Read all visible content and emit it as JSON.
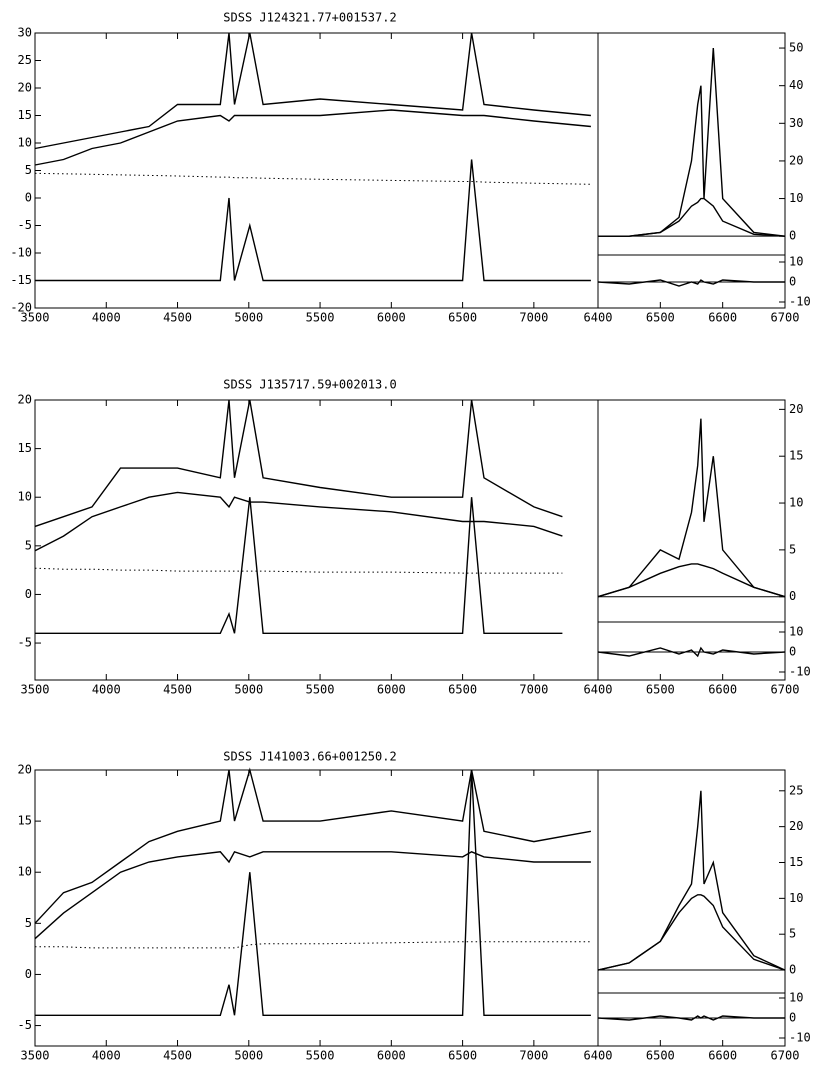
{
  "chart_data": [
    {
      "type": "line",
      "title": "SDSS J124321.77+001537.2",
      "x": [
        3500,
        3700,
        3900,
        4100,
        4300,
        4500,
        4800,
        4861,
        4900,
        5007,
        5100,
        5500,
        6000,
        6500,
        6563,
        6650,
        7000,
        7400
      ],
      "xlim": [
        3500,
        7450
      ],
      "xticks": [
        3500,
        4000,
        4500,
        5000,
        5500,
        6000,
        6500,
        7000
      ],
      "ylim": [
        -20,
        30
      ],
      "yticks": [
        -20,
        -15,
        -10,
        -5,
        0,
        5,
        10,
        15,
        20,
        25,
        30
      ],
      "series": [
        {
          "color": "#000000",
          "values": [
            9,
            10,
            11,
            12,
            13,
            17,
            17,
            30,
            17,
            30,
            17,
            18,
            17,
            16,
            30,
            17,
            16,
            15
          ]
        },
        {
          "color": "#000000",
          "values": [
            6,
            7,
            9,
            10,
            12,
            14,
            15,
            14,
            15,
            15,
            15,
            15,
            16,
            15,
            15,
            15,
            14,
            13
          ]
        },
        {
          "color": "#000000",
          "style": "dotted",
          "values": [
            4.5,
            4.4,
            4.3,
            4.2,
            4.1,
            4,
            3.8,
            3.8,
            3.7,
            3.7,
            3.6,
            3.4,
            3.2,
            3,
            3,
            2.9,
            2.7,
            2.5
          ]
        },
        {
          "color": "#000000",
          "values": [
            -15,
            -15,
            -15,
            -15,
            -15,
            -15,
            -15,
            0,
            -15,
            -5,
            -15,
            -15,
            -15,
            -15,
            7,
            -15,
            -15,
            -15
          ]
        }
      ],
      "inset": {
        "type": "line",
        "x": [
          6400,
          6450,
          6500,
          6530,
          6550,
          6560,
          6565,
          6570,
          6585,
          6600,
          6650,
          6700
        ],
        "xlim": [
          6400,
          6700
        ],
        "xticks": [
          6400,
          6500,
          6600,
          6700
        ],
        "ylim": [
          -5,
          54
        ],
        "yticks": [
          0,
          10,
          20,
          30,
          40,
          50
        ],
        "series": [
          {
            "color": "#000000",
            "values": [
              0,
              0,
              1,
              5,
              20,
              35,
              40,
              10,
              50,
              10,
              1,
              0
            ]
          },
          {
            "color": "#000000",
            "values": [
              0,
              0,
              1,
              4,
              8,
              9,
              10,
              10,
              8,
              4,
              0.5,
              0
            ]
          }
        ]
      },
      "inset_residual": {
        "type": "line",
        "x": [
          6400,
          6450,
          6500,
          6530,
          6550,
          6560,
          6565,
          6570,
          6585,
          6600,
          6650,
          6700
        ],
        "xlim": [
          6400,
          6700
        ],
        "ylim": [
          -13,
          13.5
        ],
        "yticks": [
          -10,
          0,
          10
        ],
        "series": [
          {
            "color": "#000000",
            "values": [
              0,
              -1,
              1,
              -2,
              0,
              -1,
              1,
              0,
              -1,
              1,
              0,
              0
            ]
          }
        ]
      }
    },
    {
      "type": "line",
      "title": "SDSS J135717.59+002013.0",
      "x": [
        3500,
        3700,
        3900,
        4100,
        4300,
        4500,
        4800,
        4861,
        4900,
        5007,
        5100,
        5500,
        6000,
        6500,
        6563,
        6650,
        7000,
        7200
      ],
      "xlim": [
        3500,
        7450
      ],
      "xticks": [
        3500,
        4000,
        4500,
        5000,
        5500,
        6000,
        6500,
        7000
      ],
      "ylim": [
        -8.8,
        20
      ],
      "yticks": [
        -5,
        0,
        5,
        10,
        15,
        20
      ],
      "series": [
        {
          "color": "#000000",
          "values": [
            7,
            8,
            9,
            13,
            13,
            13,
            12,
            20,
            12,
            20,
            12,
            11,
            10,
            10,
            20,
            12,
            9,
            8
          ]
        },
        {
          "color": "#000000",
          "values": [
            4.5,
            6,
            8,
            9,
            10,
            10.5,
            10,
            9,
            10,
            9.5,
            9.5,
            9,
            8.5,
            7.5,
            7.5,
            7.5,
            7,
            6
          ]
        },
        {
          "color": "#000000",
          "style": "dotted",
          "values": [
            2.7,
            2.6,
            2.6,
            2.5,
            2.5,
            2.4,
            2.4,
            2.4,
            2.4,
            2.4,
            2.4,
            2.3,
            2.3,
            2.2,
            2.2,
            2.2,
            2.2,
            2.2
          ]
        },
        {
          "color": "#000000",
          "values": [
            -4,
            -4,
            -4,
            -4,
            -4,
            -4,
            -4,
            -2,
            -4,
            10,
            -4,
            -4,
            -4,
            -4,
            10,
            -4,
            -4,
            -4
          ]
        }
      ],
      "inset": {
        "type": "line",
        "x": [
          6400,
          6450,
          6500,
          6530,
          6550,
          6560,
          6565,
          6570,
          6585,
          6600,
          6650,
          6700
        ],
        "xlim": [
          6400,
          6700
        ],
        "xticks": [
          6400,
          6500,
          6600,
          6700
        ],
        "ylim": [
          -2.7,
          21
        ],
        "yticks": [
          0,
          5,
          10,
          15,
          20
        ],
        "series": [
          {
            "color": "#000000",
            "values": [
              0,
              1,
              5,
              4,
              9,
              14,
              19,
              8,
              15,
              5,
              1,
              0
            ]
          },
          {
            "color": "#000000",
            "values": [
              0,
              1,
              2.5,
              3.2,
              3.5,
              3.5,
              3.4,
              3.3,
              3,
              2.5,
              1,
              0
            ]
          }
        ]
      },
      "inset_residual": {
        "type": "line",
        "x": [
          6400,
          6450,
          6500,
          6530,
          6550,
          6560,
          6565,
          6570,
          6585,
          6600,
          6650,
          6700
        ],
        "xlim": [
          6400,
          6700
        ],
        "ylim": [
          -14,
          15
        ],
        "yticks": [
          -10,
          0,
          10
        ],
        "series": [
          {
            "color": "#000000",
            "values": [
              0,
              -2,
              2,
              -1,
              1,
              -2,
              2,
              0,
              -1,
              1,
              -1,
              0
            ]
          }
        ]
      }
    },
    {
      "type": "line",
      "title": "SDSS J141003.66+001250.2",
      "x": [
        3500,
        3700,
        3900,
        4100,
        4300,
        4500,
        4800,
        4861,
        4900,
        5007,
        5100,
        5500,
        6000,
        6500,
        6563,
        6650,
        7000,
        7400
      ],
      "xlim": [
        3500,
        7450
      ],
      "xticks": [
        3500,
        4000,
        4500,
        5000,
        5500,
        6000,
        6500,
        7000
      ],
      "ylim": [
        -7,
        20
      ],
      "yticks": [
        -5,
        0,
        5,
        10,
        15,
        20
      ],
      "series": [
        {
          "color": "#000000",
          "values": [
            5,
            8,
            9,
            11,
            13,
            14,
            15,
            20,
            15,
            20,
            15,
            15,
            16,
            15,
            20,
            14,
            13,
            14
          ]
        },
        {
          "color": "#000000",
          "values": [
            3.5,
            6,
            8,
            10,
            11,
            11.5,
            12,
            11,
            12,
            11.5,
            12,
            12,
            12,
            11.5,
            12,
            11.5,
            11,
            11
          ]
        },
        {
          "color": "#000000",
          "style": "dotted",
          "values": [
            2.7,
            2.7,
            2.6,
            2.6,
            2.6,
            2.6,
            2.6,
            2.6,
            2.6,
            2.9,
            3,
            3,
            3.1,
            3.2,
            3.2,
            3.2,
            3.2,
            3.2
          ]
        },
        {
          "color": "#000000",
          "values": [
            -4,
            -4,
            -4,
            -4,
            -4,
            -4,
            -4,
            -1,
            -4,
            10,
            -4,
            -4,
            -4,
            -4,
            20,
            -4,
            -4,
            -4
          ]
        }
      ],
      "inset": {
        "type": "line",
        "x": [
          6400,
          6450,
          6500,
          6530,
          6550,
          6560,
          6565,
          6570,
          6585,
          6600,
          6650,
          6700
        ],
        "xlim": [
          6400,
          6700
        ],
        "xticks": [
          6400,
          6500,
          6600,
          6700
        ],
        "ylim": [
          -3.2,
          27.9
        ],
        "yticks": [
          0,
          5,
          10,
          15,
          20,
          25
        ],
        "series": [
          {
            "color": "#000000",
            "values": [
              0,
              1,
              4,
              9,
              12,
              20,
              25,
              12,
              15,
              8,
              2,
              0
            ]
          },
          {
            "color": "#000000",
            "values": [
              0,
              1,
              4,
              8,
              10,
              10.5,
              10.5,
              10.3,
              9,
              6,
              1.5,
              0
            ]
          }
        ]
      },
      "inset_residual": {
        "type": "line",
        "x": [
          6400,
          6450,
          6500,
          6530,
          6550,
          6560,
          6565,
          6570,
          6585,
          6600,
          6650,
          6700
        ],
        "xlim": [
          6400,
          6700
        ],
        "ylim": [
          -14,
          12.5
        ],
        "yticks": [
          -10,
          0,
          10
        ],
        "series": [
          {
            "color": "#000000",
            "values": [
              0,
              -1,
              1,
              0,
              -1,
              1,
              0,
              1,
              -1,
              1,
              0,
              0
            ]
          }
        ]
      }
    }
  ]
}
